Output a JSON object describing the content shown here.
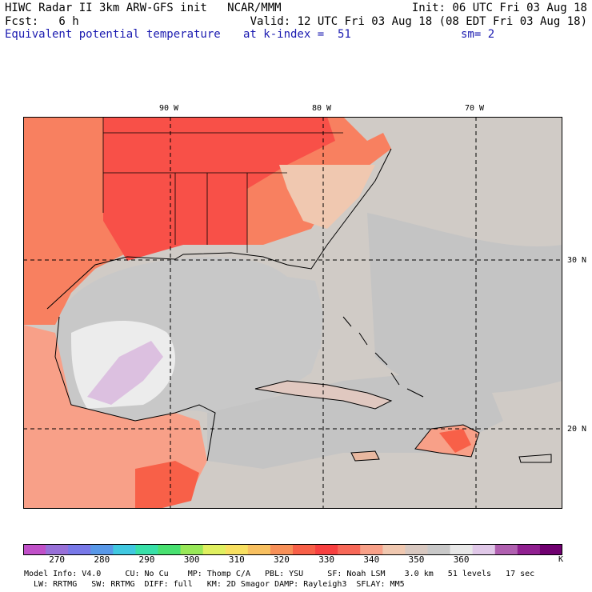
{
  "header": {
    "model_title": "HIWC Radar II 3km ARW-GFS init   NCAR/MMM",
    "init": "Init: 06 UTC Fri 03 Aug 18",
    "fcst": "Fcst:   6 h",
    "valid": "Valid: 12 UTC Fri 03 Aug 18 (08 EDT Fri 03 Aug 18)",
    "field": "Equivalent potential temperature",
    "level": "at k-index =  51",
    "smooth": "sm= 2"
  },
  "axes": {
    "lon_labels": [
      "90 W",
      "80 W",
      "70 W"
    ],
    "lat_labels": [
      "30 N",
      "20 N"
    ]
  },
  "colorbar": {
    "unit": "K",
    "labels": [
      "270",
      "280",
      "290",
      "300",
      "310",
      "320",
      "330",
      "340",
      "350",
      "360"
    ],
    "colors": [
      "#c050c8",
      "#9870d8",
      "#7878e8",
      "#5898e8",
      "#40c8e0",
      "#38e0a8",
      "#48e070",
      "#98e858",
      "#e0f060",
      "#f8e060",
      "#f8c060",
      "#f89058",
      "#f86048",
      "#f84040",
      "#f86858",
      "#f8a088",
      "#f0c8b0",
      "#d8c8c0",
      "#c8c8c8",
      "#e8e8e8",
      "#e0c8e8",
      "#b060b0",
      "#902090",
      "#700070"
    ]
  },
  "footer": {
    "line1": "Model Info: V4.0     CU: No Cu    MP: Thomp C/A   PBL: YSU     SF: Noah LSM    3.0 km   51 levels   17 sec",
    "line2": "  LW: RRTMG   SW: RRTMG  DIFF: full   KM: 2D Smagor DAMP: Rayleigh3  SFLAY: MM5"
  }
}
